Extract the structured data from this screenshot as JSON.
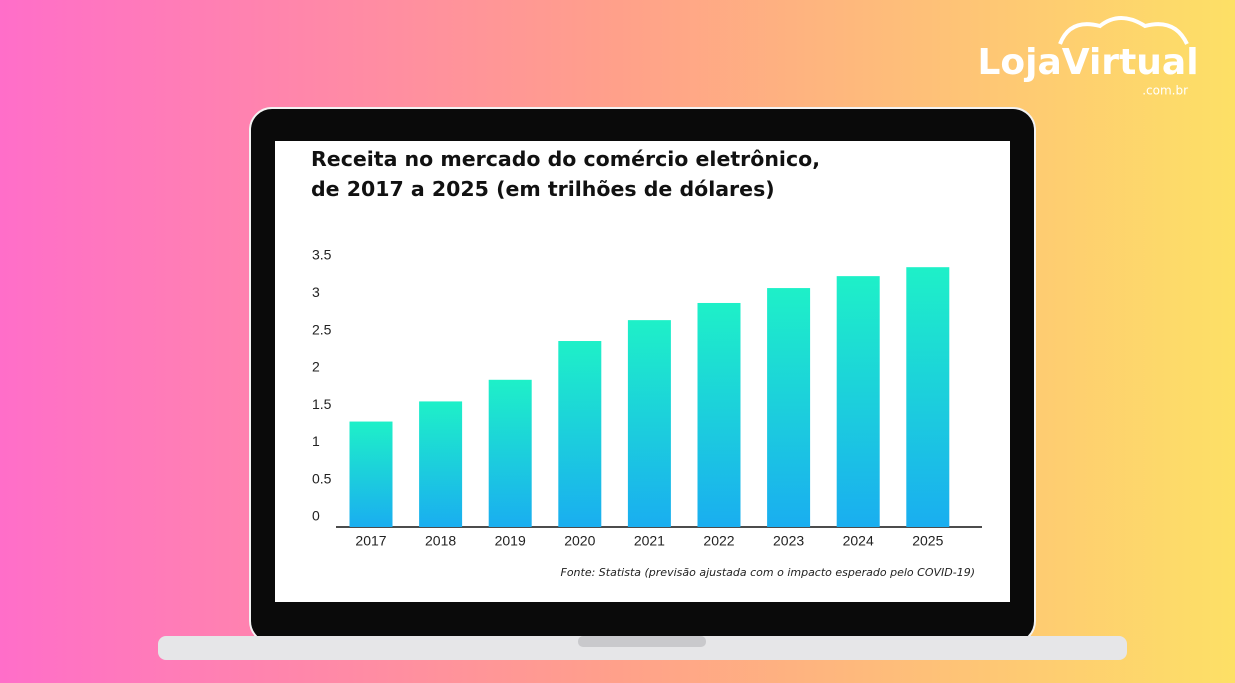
{
  "logo": {
    "name": "LojaVirtual",
    "domain": ".com.br"
  },
  "chart_data": {
    "type": "bar",
    "title": "Receita no mercado do comércio eletrônico, de 2017 a 2025 (em trilhões de dólares)",
    "source": "Fonte: Statista (previsão ajustada com o impacto esperado pelo COVID-19)",
    "categories": [
      "2017",
      "2018",
      "2019",
      "2020",
      "2021",
      "2022",
      "2023",
      "2024",
      "2025"
    ],
    "values": [
      1.28,
      1.55,
      1.84,
      2.36,
      2.64,
      2.87,
      3.07,
      3.23,
      3.35
    ],
    "color": [
      "#1ef0c8",
      "#1aaef0"
    ],
    "ylim": [
      0,
      3.5
    ],
    "yticks": [
      0,
      0.5,
      1,
      1.5,
      2,
      2.5,
      3,
      3.5
    ],
    "grid": false
  }
}
